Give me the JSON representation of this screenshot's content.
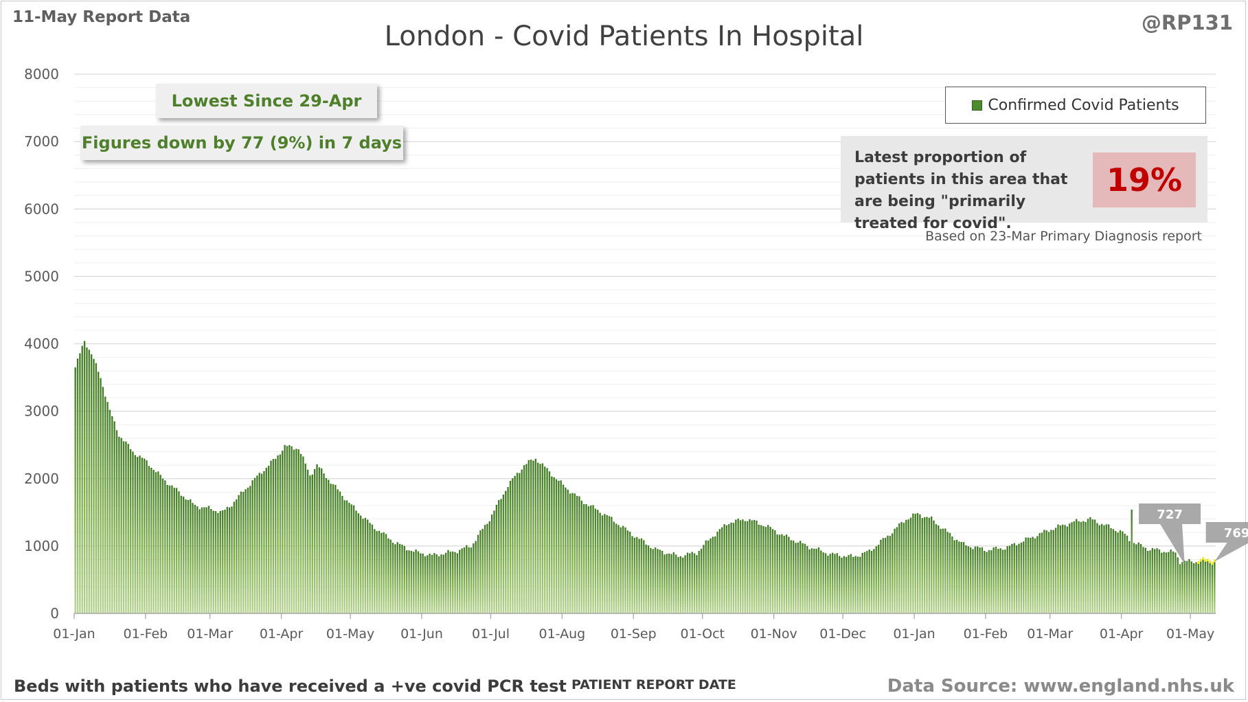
{
  "header": {
    "report_date": "11-May Report Data",
    "handle": "@RP131",
    "title": "London - Covid Patients In Hospital"
  },
  "callouts": {
    "lowest": "Lowest Since 29-Apr",
    "change": "Figures down by 77 (9%) in 7 days"
  },
  "legend": {
    "label": "Confirmed Covid Patients"
  },
  "proportion": {
    "text": "Latest proportion of patients in this area that are being \"primarily treated for covid\".",
    "value": "19%",
    "note": "Based on 23-Mar Primary Diagnosis report"
  },
  "footer": {
    "left": "Beds with patients who have received a +ve covid PCR test",
    "center": "PATIENT REPORT DATE",
    "right": "Data Source: www.england.nhs.uk"
  },
  "colors": {
    "bar": "#5f9a3a",
    "highlight": "#f2e600",
    "grid": "#d9d9d9"
  },
  "chart_data": {
    "type": "bar",
    "title": "London - Covid Patients In Hospital",
    "xlabel": "PATIENT REPORT DATE",
    "ylabel": "",
    "ylim": [
      0,
      8000
    ],
    "yticks": [
      0,
      1000,
      2000,
      3000,
      4000,
      5000,
      6000,
      7000,
      8000
    ],
    "grid": true,
    "legend_position": "top-right",
    "x_start": "2021-01-01",
    "x_ticks": [
      {
        "label": "01-Jan",
        "date": "2021-01-01"
      },
      {
        "label": "01-Feb",
        "date": "2021-02-01"
      },
      {
        "label": "01-Mar",
        "date": "2021-03-01"
      },
      {
        "label": "01-Apr",
        "date": "2021-04-01"
      },
      {
        "label": "01-May",
        "date": "2021-05-01"
      },
      {
        "label": "01-Jun",
        "date": "2021-06-01"
      },
      {
        "label": "01-Jul",
        "date": "2021-07-01"
      },
      {
        "label": "01-Aug",
        "date": "2021-08-01"
      },
      {
        "label": "01-Sep",
        "date": "2021-09-01"
      },
      {
        "label": "01-Oct",
        "date": "2021-10-01"
      },
      {
        "label": "01-Nov",
        "date": "2021-11-01"
      },
      {
        "label": "01-Dec",
        "date": "2021-12-01"
      },
      {
        "label": "01-Jan",
        "date": "2022-01-01"
      },
      {
        "label": "01-Feb",
        "date": "2022-02-01"
      },
      {
        "label": "01-Mar",
        "date": "2022-03-01"
      },
      {
        "label": "01-Apr",
        "date": "2022-04-01"
      },
      {
        "label": "01-May",
        "date": "2022-05-01"
      }
    ],
    "series": [
      {
        "name": "Confirmed Covid Patients",
        "keyframes": [
          [
            "2021-01-01",
            3650
          ],
          [
            "2021-01-05",
            4050
          ],
          [
            "2021-01-08",
            3850
          ],
          [
            "2021-01-12",
            3500
          ],
          [
            "2021-01-16",
            3000
          ],
          [
            "2021-01-20",
            2650
          ],
          [
            "2021-01-26",
            2400
          ],
          [
            "2021-02-01",
            2250
          ],
          [
            "2021-02-08",
            2000
          ],
          [
            "2021-02-15",
            1800
          ],
          [
            "2021-02-22",
            1600
          ],
          [
            "2021-03-01",
            1550
          ],
          [
            "2021-03-06",
            1500
          ],
          [
            "2021-03-10",
            1620
          ],
          [
            "2021-03-16",
            1850
          ],
          [
            "2021-03-23",
            2100
          ],
          [
            "2021-03-29",
            2300
          ],
          [
            "2021-04-02",
            2480
          ],
          [
            "2021-04-08",
            2450
          ],
          [
            "2021-04-13",
            2050
          ],
          [
            "2021-04-16",
            2200
          ],
          [
            "2021-04-22",
            1950
          ],
          [
            "2021-05-01",
            1600
          ],
          [
            "2021-05-10",
            1300
          ],
          [
            "2021-05-20",
            1050
          ],
          [
            "2021-05-28",
            920
          ],
          [
            "2021-06-05",
            860
          ],
          [
            "2021-06-15",
            920
          ],
          [
            "2021-06-22",
            1000
          ],
          [
            "2021-06-30",
            1400
          ],
          [
            "2021-07-08",
            1900
          ],
          [
            "2021-07-15",
            2200
          ],
          [
            "2021-07-20",
            2300
          ],
          [
            "2021-07-26",
            2100
          ],
          [
            "2021-08-01",
            1900
          ],
          [
            "2021-08-10",
            1650
          ],
          [
            "2021-08-20",
            1450
          ],
          [
            "2021-09-01",
            1150
          ],
          [
            "2021-09-10",
            950
          ],
          [
            "2021-09-20",
            850
          ],
          [
            "2021-09-28",
            900
          ],
          [
            "2021-10-05",
            1150
          ],
          [
            "2021-10-12",
            1350
          ],
          [
            "2021-10-20",
            1400
          ],
          [
            "2021-10-28",
            1300
          ],
          [
            "2021-11-05",
            1150
          ],
          [
            "2021-11-15",
            1000
          ],
          [
            "2021-11-25",
            880
          ],
          [
            "2021-12-05",
            840
          ],
          [
            "2021-12-12",
            920
          ],
          [
            "2021-12-20",
            1150
          ],
          [
            "2021-12-28",
            1400
          ],
          [
            "2022-01-02",
            1480
          ],
          [
            "2022-01-08",
            1400
          ],
          [
            "2022-01-15",
            1200
          ],
          [
            "2022-01-22",
            1020
          ],
          [
            "2022-02-01",
            940
          ],
          [
            "2022-02-10",
            980
          ],
          [
            "2022-02-20",
            1120
          ],
          [
            "2022-03-01",
            1250
          ],
          [
            "2022-03-10",
            1350
          ],
          [
            "2022-03-18",
            1400
          ],
          [
            "2022-03-25",
            1300
          ],
          [
            "2022-04-01",
            1200
          ],
          [
            "2022-04-04",
            1100
          ],
          [
            "2022-04-06",
            1050
          ],
          [
            "2022-04-12",
            960
          ],
          [
            "2022-04-20",
            920
          ],
          [
            "2022-04-24",
            900
          ],
          [
            "2022-04-26",
            770
          ],
          [
            "2022-05-11",
            769
          ]
        ],
        "spikes": [
          [
            "2022-04-05",
            1540
          ]
        ]
      }
    ],
    "highlight_range": [
      "2022-05-04",
      "2022-05-11"
    ],
    "annotations": [
      {
        "label": "727",
        "date": "2022-04-28",
        "value": 727
      },
      {
        "label": "769",
        "date": "2022-05-11",
        "value": 769
      }
    ]
  }
}
